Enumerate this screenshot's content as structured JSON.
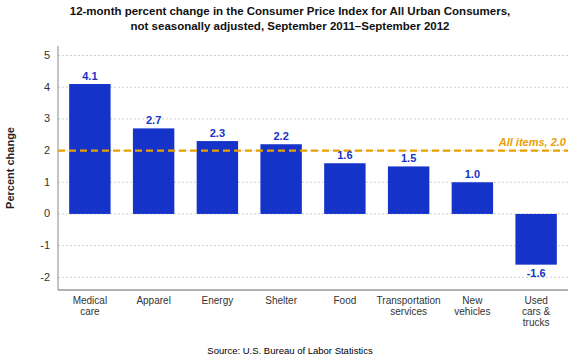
{
  "chart_data": {
    "type": "bar",
    "title": "12-month percent change in the Consumer Price Index for All Urban Consumers,\nnot seasonally adjusted, September 2011–September 2012",
    "y_label": "Percent change",
    "source": "Source: U.S. Bureau of Labor Statistics",
    "categories": [
      "Medical\ncare",
      "Apparel",
      "Energy",
      "Shelter",
      "Food",
      "Transportation\nservices",
      "New\nvehicles",
      "Used\ncars &\ntrucks"
    ],
    "values": [
      4.1,
      2.7,
      2.3,
      2.2,
      1.6,
      1.5,
      1.0,
      -1.6
    ],
    "value_labels": [
      "4.1",
      "2.7",
      "2.3",
      "2.2",
      "1.6",
      "1.5",
      "1.0",
      "-1.6"
    ],
    "color": "#1533c8",
    "data_labels": true,
    "reference_line": {
      "y": 2.0,
      "label": "All items, 2.0",
      "color": "#E8A000",
      "line_style": "dashed"
    },
    "ylim": [
      -2.4,
      5.3
    ],
    "yticks": [
      -2,
      -1,
      0,
      1,
      2,
      3,
      4,
      5
    ],
    "grid": true
  }
}
